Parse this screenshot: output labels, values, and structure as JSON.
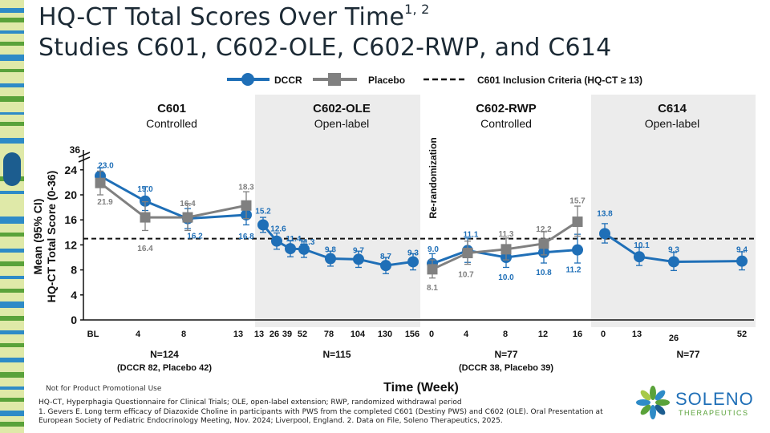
{
  "title": {
    "line1": "HQ-CT Total Scores Over Time",
    "line1_superscript": "1, 2",
    "line2": "Studies C601, C602-OLE, C602-RWP, and C614"
  },
  "footer": {
    "not_promo": "Not for Product Promotional Use",
    "abbreviations": "HQ-CT, Hyperphagia Questionnaire for Clinical Trials; OLE, open-label extension; RWP, randomized withdrawal period",
    "ref1": "1.  Gevers E. Long term efficacy of Diazoxide Choline in participants with PWS from the completed C601 (Destiny PWS) and C602 (OLE). Oral Presentation at European Society of Pediatric Endocrinology Meeting, Nov. 2024; Liverpool, England. 2. Data on File, Soleno Therapeutics, 2025."
  },
  "logo": {
    "name": "SOLENO",
    "sub": "THERAPEUTICS"
  },
  "colors": {
    "dccr": "#1f6fb7",
    "placebo": "#808080",
    "panel": "#ececec",
    "dark": "#1c2a35"
  },
  "chart_data": {
    "type": "line",
    "ylabel_line1": "Mean (95% CI)",
    "ylabel_line2": "HQ-CT Total Score (0-36)",
    "xlabel": "Time (Week)",
    "yticks": [
      "0",
      "4",
      "8",
      "12",
      "16",
      "20",
      "24"
    ],
    "ytick_values": [
      0,
      4,
      8,
      12,
      16,
      20,
      24
    ],
    "y_break_label": "36",
    "ylim": [
      0,
      25
    ],
    "re_randomization_label": "Re-randomization",
    "legend": {
      "dccr": "DCCR",
      "placebo": "Placebo",
      "criteria": "C601 Inclusion Criteria (HQ-CT ≥ 13)"
    },
    "inclusion_threshold": 13,
    "panels": [
      {
        "name": "C601",
        "subtitle": "Controlled",
        "shaded": false,
        "xticks": [
          "BL",
          "4",
          "8",
          "13"
        ],
        "n_label": "N=124",
        "n_detail": "(DCCR 82, Placebo 42)",
        "series": [
          {
            "name": "DCCR",
            "values": [
              23.0,
              19.0,
              16.2,
              16.8
            ],
            "labels": [
              "23.0",
              "19.0",
              "16.2",
              "16.8"
            ],
            "ci": [
              [
                21.5,
                24.3
              ],
              [
                17.5,
                21.3
              ],
              [
                14.6,
                17.8
              ],
              [
                15.2,
                18.2
              ]
            ]
          },
          {
            "name": "Placebo",
            "values": [
              21.9,
              16.4,
              16.4,
              18.3
            ],
            "labels": [
              "21.9",
              "16.4",
              "16.4",
              "18.3"
            ],
            "ci": [
              [
                20.0,
                23.8
              ],
              [
                14.3,
                18.9
              ],
              [
                14.3,
                18.6
              ],
              [
                16.2,
                20.5
              ]
            ]
          }
        ]
      },
      {
        "name": "C602-OLE",
        "subtitle": "Open-label",
        "shaded": true,
        "xticks": [
          "13",
          "26",
          "39",
          "52",
          "78",
          "104",
          "130",
          "156"
        ],
        "n_label": "N=115",
        "n_detail": "",
        "series": [
          {
            "name": "DCCR",
            "values": [
              15.2,
              12.6,
              11.4,
              11.3,
              9.8,
              9.7,
              8.7,
              9.3
            ],
            "labels": [
              "15.2",
              "12.6",
              "11.4",
              "11.3",
              "9.8",
              "9.7",
              "8.7",
              "9.3"
            ],
            "ci": [
              [
                14.0,
                16.4
              ],
              [
                11.3,
                13.9
              ],
              [
                10.1,
                12.7
              ],
              [
                10.0,
                12.6
              ],
              [
                8.6,
                11.0
              ],
              [
                8.4,
                11.0
              ],
              [
                7.4,
                10.0
              ],
              [
                8.0,
                10.6
              ]
            ]
          }
        ]
      },
      {
        "name": "C602-RWP",
        "subtitle": "Controlled",
        "shaded": false,
        "xticks": [
          "0",
          "4",
          "8",
          "12",
          "16"
        ],
        "n_label": "N=77",
        "n_detail": "(DCCR 38, Placebo 39)",
        "series": [
          {
            "name": "DCCR",
            "values": [
              9.0,
              11.1,
              10.0,
              10.8,
              11.2
            ],
            "labels": [
              "9.0",
              "11.1",
              "10.0",
              "10.8",
              "11.2"
            ],
            "ci": [
              [
                7.4,
                10.6
              ],
              [
                9.2,
                13.1
              ],
              [
                8.4,
                11.7
              ],
              [
                9.1,
                12.6
              ],
              [
                9.1,
                13.7
              ]
            ]
          },
          {
            "name": "Placebo",
            "values": [
              8.1,
              10.7,
              11.3,
              12.2,
              15.7
            ],
            "labels": [
              "8.1",
              "10.7",
              "11.3",
              "12.2",
              "15.7"
            ],
            "ci": [
              [
                6.7,
                9.6
              ],
              [
                8.9,
                12.6
              ],
              [
                9.6,
                13.1
              ],
              [
                10.4,
                14.1
              ],
              [
                13.4,
                18.2
              ]
            ]
          }
        ]
      },
      {
        "name": "C614",
        "subtitle": "Open-label",
        "shaded": true,
        "xticks": [
          "0",
          "13",
          "26",
          "52"
        ],
        "n_label": "N=77",
        "n_detail": "",
        "series": [
          {
            "name": "DCCR",
            "values": [
              13.8,
              10.1,
              9.3,
              9.4
            ],
            "labels": [
              "13.8",
              "10.1",
              "9.3",
              "9.4"
            ],
            "ci": [
              [
                12.3,
                15.4
              ],
              [
                8.7,
                11.6
              ],
              [
                7.9,
                10.8
              ],
              [
                8.0,
                10.9
              ]
            ]
          }
        ]
      }
    ]
  }
}
